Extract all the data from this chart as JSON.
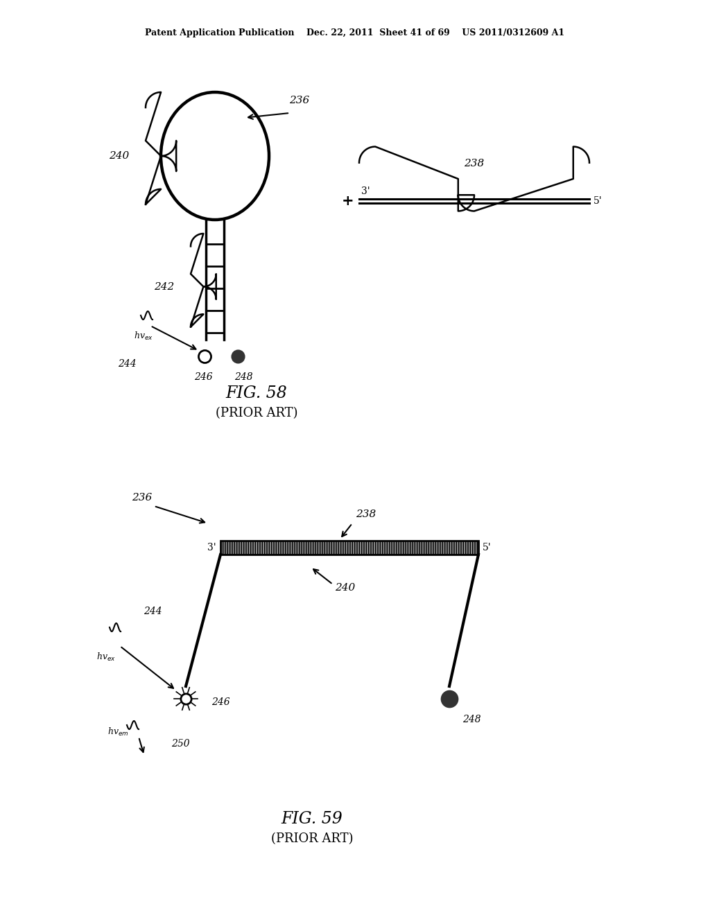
{
  "bg_color": "#ffffff",
  "header_text": "Patent Application Publication    Dec. 22, 2011  Sheet 41 of 69    US 2011/0312609 A1",
  "fig58_title": "FIG. 58",
  "fig58_subtitle": "(PRIOR ART)",
  "fig59_title": "FIG. 59",
  "fig59_subtitle": "(PRIOR ART)",
  "text_color": "#000000",
  "line_color": "#000000"
}
